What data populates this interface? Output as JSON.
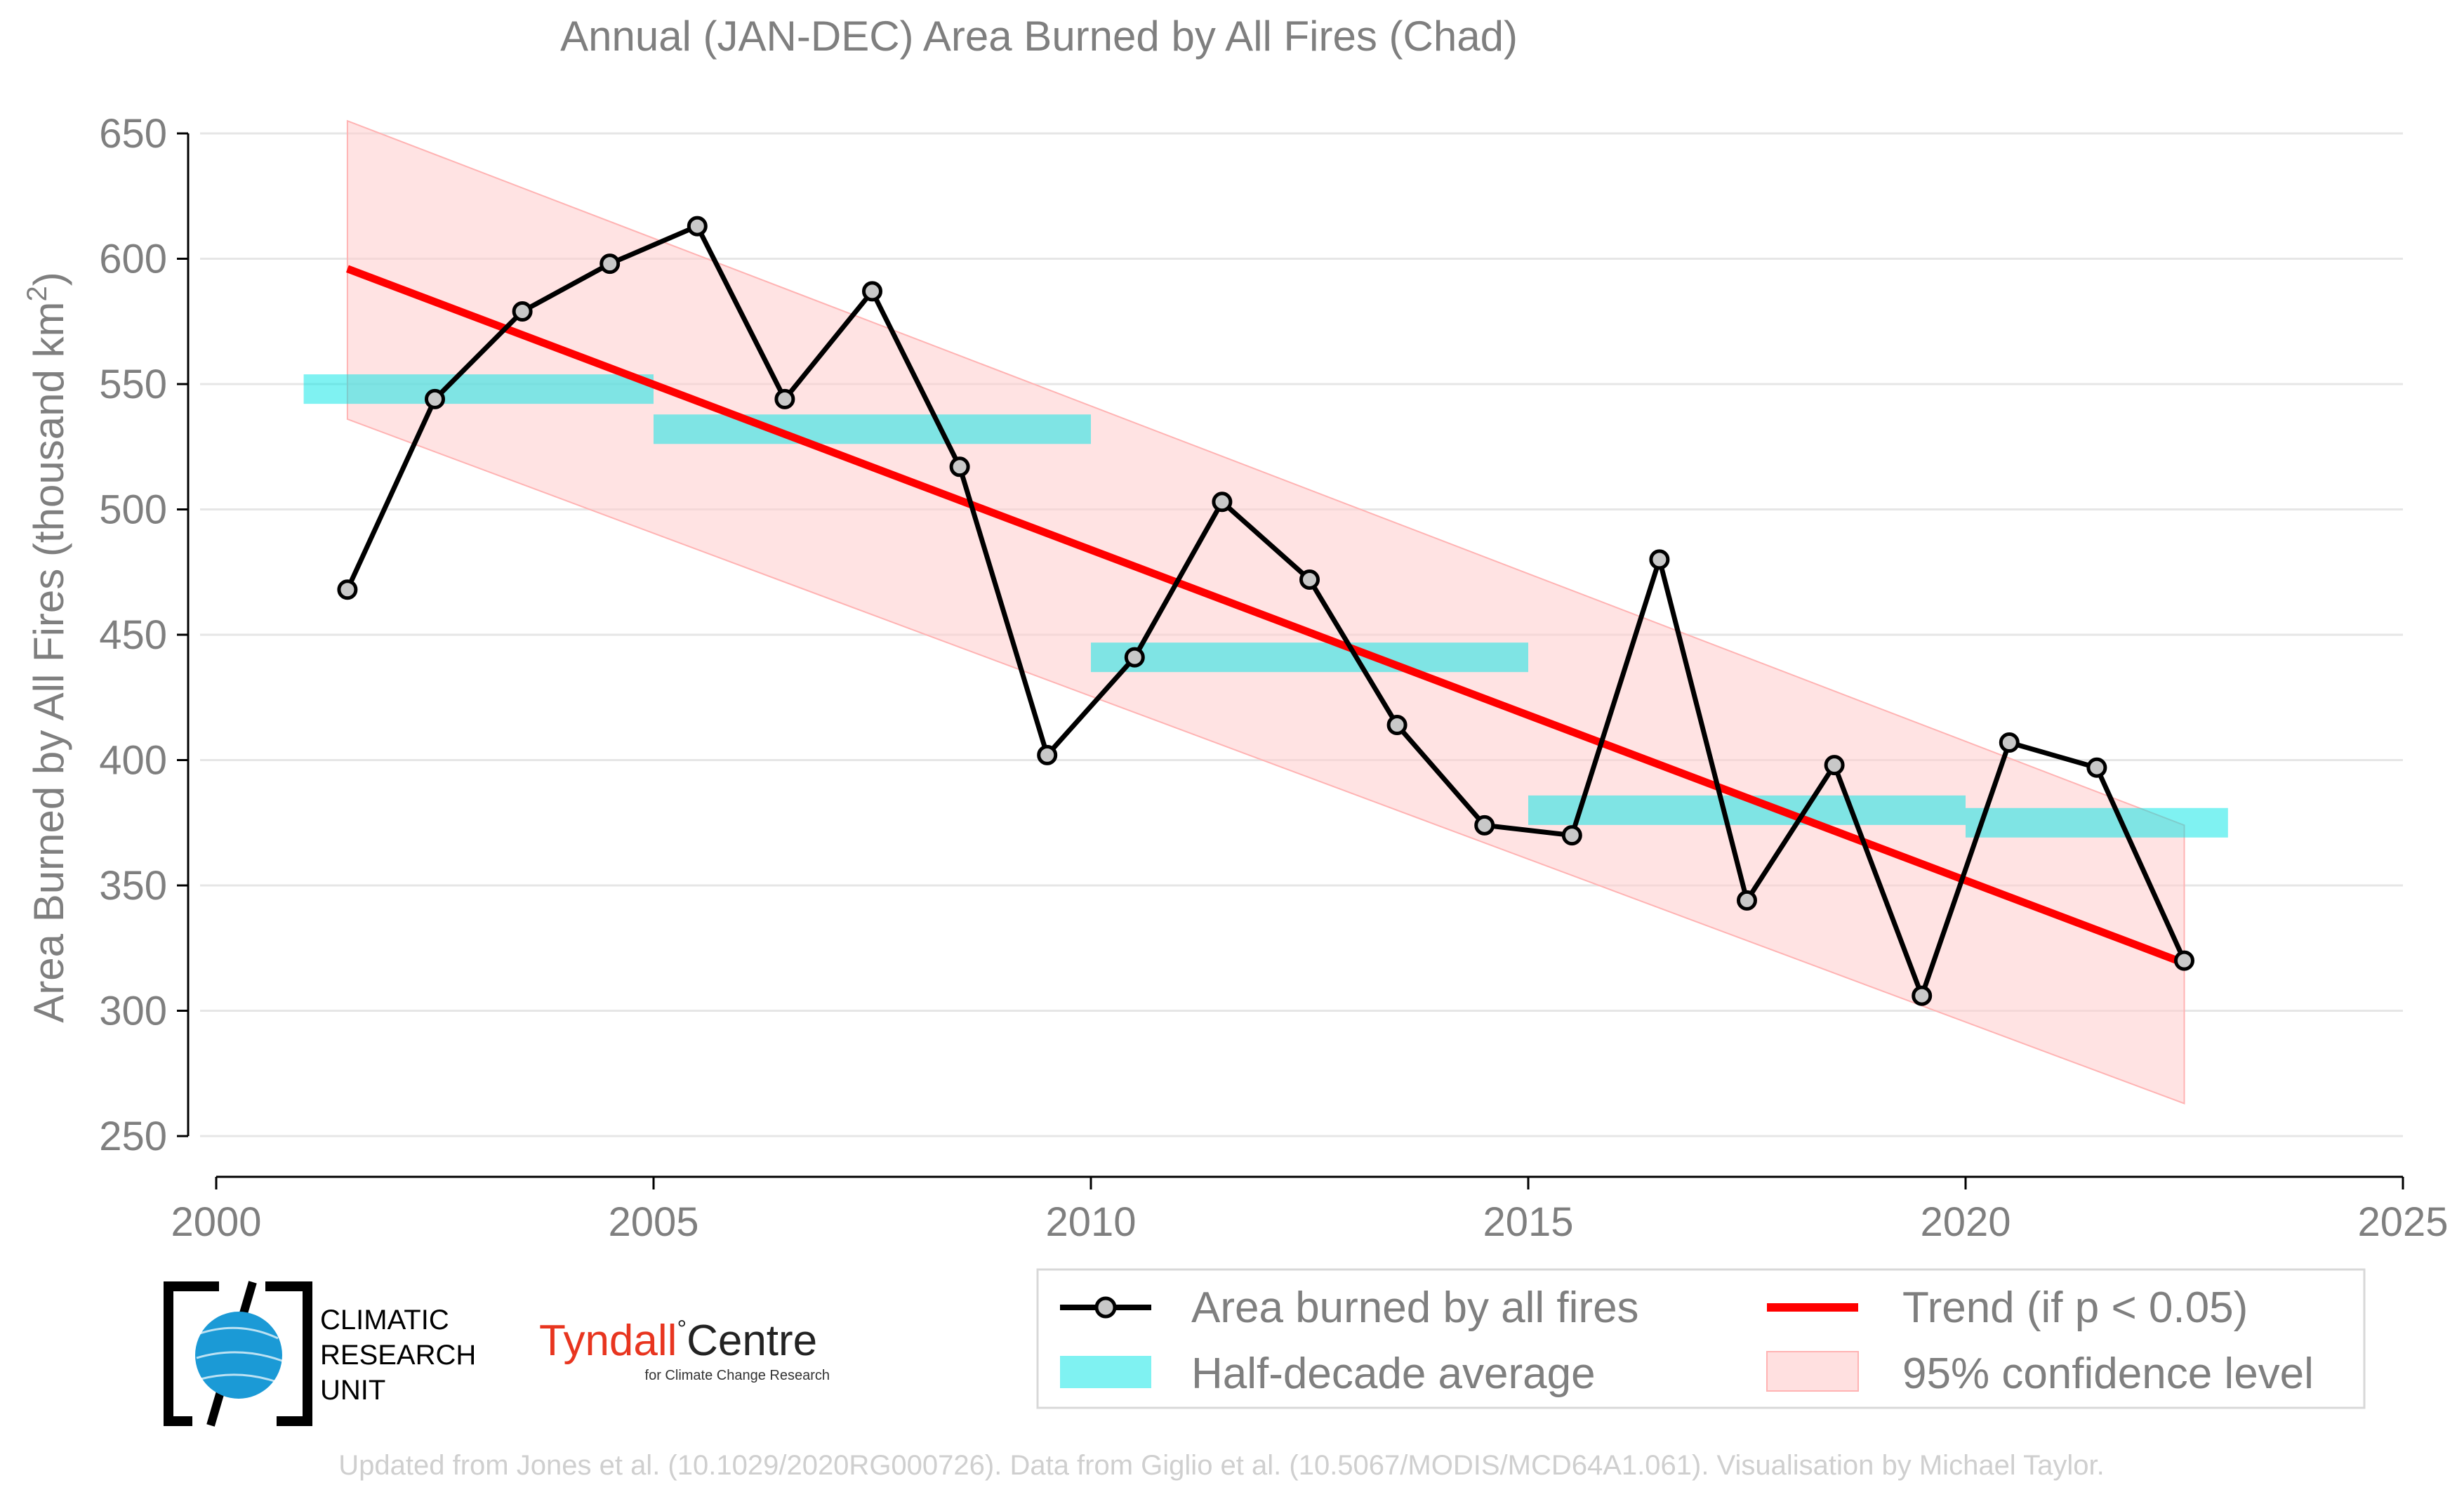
{
  "chart_data": {
    "type": "line",
    "title": "Annual (JAN-DEC) Area Burned by All Fires (Chad)",
    "ylabel": "Area Burned by All Fires (thousand km",
    "ylabel_sup": "2",
    "ylabel_close": ")",
    "xlim": [
      2000,
      2025
    ],
    "ylim": [
      250,
      650
    ],
    "xticks": [
      "2000",
      "2005",
      "2010",
      "2015",
      "2020",
      "2025"
    ],
    "yticks": [
      "250",
      "300",
      "350",
      "400",
      "450",
      "500",
      "550",
      "600",
      "650"
    ],
    "grid": "horizontal",
    "series": [
      {
        "name": "Area burned by all fires",
        "color": "#000000",
        "x": [
          2001.5,
          2002.5,
          2003.5,
          2004.5,
          2005.5,
          2006.5,
          2007.5,
          2008.5,
          2009.5,
          2010.5,
          2011.5,
          2012.5,
          2013.5,
          2014.5,
          2015.5,
          2016.5,
          2017.5,
          2018.5,
          2019.5,
          2020.5,
          2021.5,
          2022.5
        ],
        "values": [
          468,
          544,
          579,
          598,
          613,
          544,
          587,
          517,
          402,
          441,
          503,
          472,
          414,
          374,
          370,
          480,
          344,
          398,
          306,
          407,
          397,
          320
        ]
      }
    ],
    "half_decade_average": {
      "name": "Half-decade average",
      "color": "#00e5e5",
      "segments": [
        {
          "x0": 2001,
          "x1": 2005,
          "y": 548
        },
        {
          "x0": 2005,
          "x1": 2010,
          "y": 532
        },
        {
          "x0": 2010,
          "x1": 2015,
          "y": 441
        },
        {
          "x0": 2015,
          "x1": 2020,
          "y": 380
        },
        {
          "x0": 2020,
          "x1": 2023,
          "y": 375
        }
      ]
    },
    "trend": {
      "name": "Trend (if p < 0.05)",
      "color": "#ff0000",
      "x": [
        2001.5,
        2022.5
      ],
      "values": [
        596,
        319
      ]
    },
    "confidence": {
      "name": "95% confidence level",
      "color": "#ffcccc",
      "x": [
        2001.5,
        2022.5
      ],
      "upper": [
        655,
        374
      ],
      "lower": [
        536,
        263
      ]
    },
    "legend_position": "bottom-right"
  },
  "logos": {
    "cru_line1": "CLIMATIC",
    "cru_line2": "RESEARCH",
    "cru_line3": "UNIT",
    "tyndall_main": "Tyndall",
    "tyndall_degree": "°",
    "tyndall_centre": "Centre",
    "tyndall_sub": "for Climate Change Research"
  },
  "footer": "Updated from Jones et al. (10.1029/2020RG000726). Data from Giglio et al. (10.5067/MODIS/MCD64A1.061). Visualisation by Michael Taylor."
}
